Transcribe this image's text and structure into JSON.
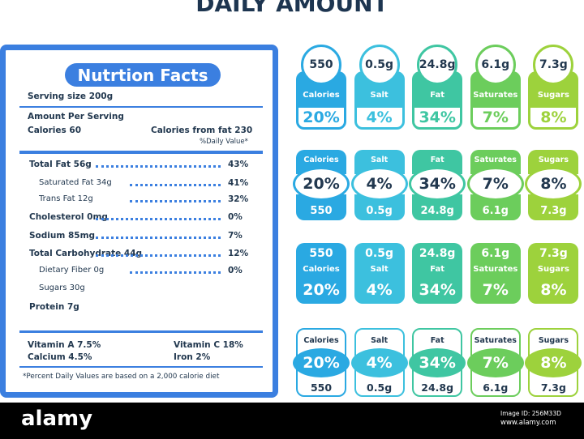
{
  "header": {
    "title": "DAILY AMOUNT"
  },
  "label": {
    "title": "Nutrtion Facts",
    "serving": "Serving size 200g",
    "amount_per_serving": "Amount Per Serving",
    "calories": "Calories 60",
    "calories_from_fat": "Calories from fat 230",
    "daily_value": "%Daily Value*",
    "rows": [
      [
        "Total Fat 56g",
        "43%"
      ],
      [
        "Saturated Fat 34g",
        "41%"
      ],
      [
        "Trans Fat 12g",
        "32%"
      ],
      [
        "Cholesterol 0mg",
        "0%"
      ],
      [
        "Sodium 85mg",
        "7%"
      ],
      [
        "Total Carbohydrate 44g",
        "12%"
      ],
      [
        "Dietary Fiber 0g",
        "0%"
      ],
      [
        "Sugars 30g"
      ],
      [
        "Protein 7g"
      ]
    ],
    "vitamins": [
      [
        "Vitamin A 7.5%",
        "Vitamin C 18%"
      ],
      [
        "Calcium 4.5%",
        "Iron 2%"
      ]
    ],
    "footnote": "*Percent Daily Values are based on a 2,000 calorie diet"
  },
  "badges": [
    {
      "name": "Calories",
      "amount": "550",
      "percent": "20%",
      "color": "#2aa9e2"
    },
    {
      "name": "Salt",
      "amount": "0.5g",
      "percent": "4%",
      "color": "#3cc0de"
    },
    {
      "name": "Fat",
      "amount": "24.8g",
      "percent": "34%",
      "color": "#3fc6a2"
    },
    {
      "name": "Saturates",
      "amount": "6.1g",
      "percent": "7%",
      "color": "#6ccd5c"
    },
    {
      "name": "Sugars",
      "amount": "7.3g",
      "percent": "8%",
      "color": "#9dd23c"
    }
  ],
  "watermark": {
    "brand": "alamy",
    "image_id": "Image ID: 256M33D",
    "site": "www.alamy.com"
  }
}
